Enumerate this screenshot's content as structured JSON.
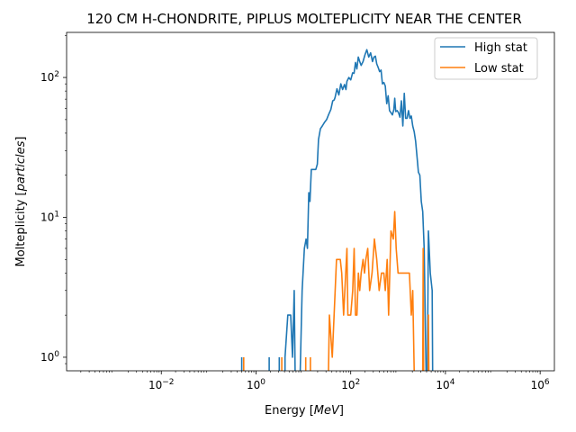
{
  "chart_data": {
    "type": "line",
    "title": "120 CM H-CHONDRITE, PIPLUS MOLTEPLICITY NEAR THE CENTER",
    "xlabel": "Energy [MeV]",
    "ylabel": "Molteplicity [particles]",
    "xscale": "log",
    "yscale": "log",
    "xlim": [
      0.0001,
      2000000
    ],
    "ylim": [
      0.8,
      210
    ],
    "grid": false,
    "legend_position": "top-right",
    "x_ticks": [
      {
        "value": 0.01,
        "base": "10",
        "exp": "−2"
      },
      {
        "value": 1,
        "base": "10",
        "exp": "0"
      },
      {
        "value": 100,
        "base": "10",
        "exp": "2"
      },
      {
        "value": 10000,
        "base": "10",
        "exp": "4"
      },
      {
        "value": 1000000,
        "base": "10",
        "exp": "6"
      }
    ],
    "y_ticks": [
      {
        "value": 1,
        "base": "10",
        "exp": "0"
      },
      {
        "value": 10,
        "base": "10",
        "exp": "1"
      },
      {
        "value": 100,
        "base": "10",
        "exp": "2"
      }
    ],
    "series": [
      {
        "name": "High stat",
        "color": "#1f77b4",
        "segments": [
          [
            [
              0.5,
              0.8
            ],
            [
              0.5,
              1
            ]
          ],
          [
            [
              1.9,
              0.8
            ],
            [
              1.9,
              1
            ]
          ],
          [
            [
              3.1,
              0.8
            ],
            [
              3.1,
              1
            ]
          ],
          [
            [
              4.1,
              0.8
            ],
            [
              4.1,
              1
            ],
            [
              4.7,
              2
            ],
            [
              5.4,
              2
            ],
            [
              5.9,
              1
            ],
            [
              6.4,
              3
            ],
            [
              6.7,
              0.8
            ]
          ],
          [
            [
              8.6,
              0.8
            ],
            [
              9.4,
              3
            ],
            [
              10.5,
              6
            ],
            [
              11.4,
              7
            ],
            [
              12.2,
              6
            ],
            [
              13.0,
              15
            ],
            [
              13.8,
              13
            ],
            [
              14.7,
              22
            ],
            [
              16.6,
              22
            ],
            [
              18.3,
              22
            ],
            [
              19.7,
              24
            ],
            [
              20.9,
              36
            ],
            [
              22.9,
              43
            ],
            [
              25.1,
              45
            ],
            [
              28.2,
              48
            ],
            [
              30.9,
              50
            ],
            [
              34.7,
              55
            ],
            [
              38.0,
              59
            ],
            [
              41.7,
              68
            ],
            [
              44.7,
              69
            ],
            [
              46.8,
              72
            ],
            [
              51.3,
              83
            ],
            [
              56.2,
              75
            ],
            [
              61.7,
              90
            ],
            [
              67.6,
              82
            ],
            [
              74.1,
              89
            ],
            [
              79.4,
              82
            ],
            [
              83.2,
              94
            ],
            [
              91.2,
              100
            ],
            [
              100.0,
              96
            ],
            [
              109.6,
              108
            ],
            [
              117.5,
              107
            ],
            [
              125.9,
              128
            ],
            [
              134.9,
              115
            ],
            [
              144.5,
              140
            ],
            [
              154.9,
              130
            ],
            [
              166.0,
              122
            ],
            [
              182.0,
              130
            ],
            [
              199.5,
              145
            ],
            [
              218.8,
              158
            ],
            [
              239.9,
              140
            ],
            [
              263.0,
              150
            ],
            [
              288.4,
              130
            ],
            [
              309.0,
              140
            ],
            [
              331.1,
              142
            ],
            [
              355.0,
              125
            ],
            [
              380.2,
              118
            ],
            [
              407.4,
              110
            ],
            [
              436.5,
              113
            ],
            [
              467.7,
              90
            ],
            [
              501.2,
              92
            ],
            [
              537.0,
              87
            ],
            [
              575.4,
              65
            ],
            [
              616.6,
              74
            ],
            [
              660.7,
              58
            ],
            [
              707.9,
              56
            ],
            [
              758.6,
              54
            ],
            [
              812.8,
              59
            ],
            [
              851.1,
              71
            ],
            [
              891.3,
              57
            ],
            [
              955.0,
              58
            ],
            [
              1023.0,
              56
            ],
            [
              1096.0,
              52
            ],
            [
              1175.0,
              68
            ],
            [
              1259.0,
              45
            ],
            [
              1349.0,
              77
            ],
            [
              1445.0,
              51
            ],
            [
              1549.0,
              51
            ],
            [
              1660.0,
              58
            ],
            [
              1778.0,
              51
            ],
            [
              1905.0,
              53
            ],
            [
              2042.0,
              45
            ],
            [
              2188.0,
              41
            ],
            [
              2344.0,
              35
            ],
            [
              2512.0,
              27
            ],
            [
              2692.0,
              21
            ],
            [
              2884.0,
              20
            ],
            [
              3090.0,
              13
            ],
            [
              3311.0,
              11
            ],
            [
              3548.0,
              6
            ],
            [
              3890.0,
              0.8
            ]
          ],
          [
            [
              4168.0,
              0.8
            ],
            [
              4365.0,
              8
            ],
            [
              4786.0,
              4
            ],
            [
              5248.0,
              3
            ],
            [
              5370.0,
              0.8
            ]
          ]
        ]
      },
      {
        "name": "Low stat",
        "color": "#ff7f0e",
        "segments": [
          [
            [
              0.55,
              0.8
            ],
            [
              0.55,
              1
            ]
          ],
          [
            [
              3.5,
              0.8
            ],
            [
              3.5,
              1
            ]
          ],
          [
            [
              11.2,
              0.8
            ],
            [
              11.2,
              1
            ]
          ],
          [
            [
              14.1,
              0.8
            ],
            [
              14.1,
              1
            ]
          ],
          [
            [
              33.9,
              0.8
            ],
            [
              35.5,
              2
            ],
            [
              40.7,
              1
            ],
            [
              50.1,
              5
            ],
            [
              60.3,
              5
            ],
            [
              64.6,
              4
            ],
            [
              70.8,
              2
            ],
            [
              83.2,
              6
            ],
            [
              87.1,
              2
            ],
            [
              100.0,
              2
            ],
            [
              110.0,
              3
            ],
            [
              118.0,
              6
            ],
            [
              126.0,
              2
            ],
            [
              135.0,
              2
            ],
            [
              145.0,
              4
            ],
            [
              155.0,
              3
            ],
            [
              166.0,
              4
            ],
            [
              182.0,
              5
            ],
            [
              195.0,
              4
            ],
            [
              209.0,
              5
            ],
            [
              229.0,
              6
            ],
            [
              251.0,
              3
            ],
            [
              282.0,
              4
            ],
            [
              316.0,
              7
            ],
            [
              355.0,
              5
            ],
            [
              398.0,
              3
            ],
            [
              447.0,
              4
            ],
            [
              501.0,
              4
            ],
            [
              537.0,
              3
            ],
            [
              589.0,
              5
            ],
            [
              631.0,
              2
            ],
            [
              708.0,
              8
            ],
            [
              794.0,
              7
            ],
            [
              851.0,
              11
            ],
            [
              912.0,
              6
            ],
            [
              1000.0,
              4
            ],
            [
              1096.0,
              4
            ],
            [
              1202.0,
              4
            ],
            [
              1318.0,
              4
            ],
            [
              1445.0,
              4
            ],
            [
              1585.0,
              4
            ],
            [
              1738.0,
              4
            ],
            [
              1905.0,
              2
            ],
            [
              2042.0,
              3
            ],
            [
              2188.0,
              0.8
            ]
          ],
          [
            [
              3311.0,
              0.8
            ],
            [
              3388.0,
              6
            ],
            [
              3467.0,
              0.8
            ]
          ],
          [
            [
              4365.0,
              0.8
            ],
            [
              4365.0,
              2
            ],
            [
              4467.0,
              0.8
            ]
          ]
        ]
      }
    ]
  }
}
